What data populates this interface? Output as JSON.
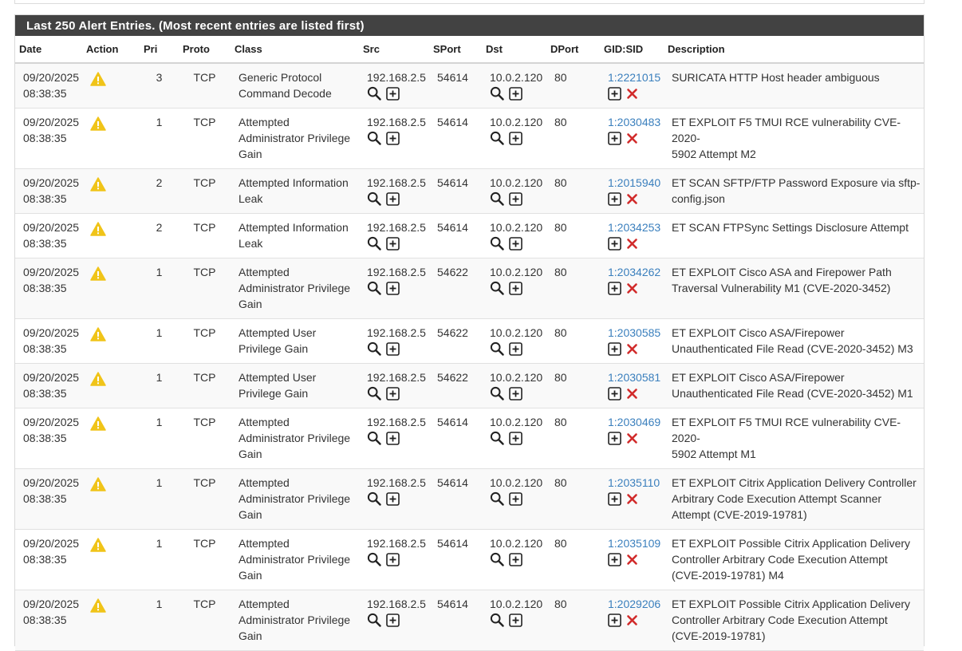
{
  "panel": {
    "title": "Last 250 Alert Entries. (Most recent entries are listed first)"
  },
  "columns": [
    "Date",
    "Action",
    "Pri",
    "Proto",
    "Class",
    "Src",
    "SPort",
    "Dst",
    "DPort",
    "GID:SID",
    "Description"
  ],
  "colors": {
    "heading_bg": "#424242",
    "link": "#3a7fbd",
    "warning": "#f0c419",
    "delete": "#d12b2b"
  },
  "rows": [
    {
      "date": "09/20/2025",
      "time": "08:38:35",
      "action_icon": "warning-icon",
      "pri": "3",
      "proto": "TCP",
      "class_l1": "Generic Protocol",
      "class_l2": "Command Decode",
      "class_l3": "",
      "src": "192.168.2.5",
      "sport": "54614",
      "dst": "10.0.2.120",
      "dport": "80",
      "sid": "1:2221015",
      "desc_l1": "SURICATA HTTP Host header ambiguous",
      "desc_l2": "",
      "desc_l3": "",
      "icons_row": 2
    },
    {
      "date": "09/20/2025",
      "time": "08:38:35",
      "action_icon": "warning-icon",
      "pri": "1",
      "proto": "TCP",
      "class_l1": "Attempted",
      "class_l2": "Administrator Privilege",
      "class_l3": "Gain",
      "src": "192.168.2.5",
      "sport": "54614",
      "dst": "10.0.2.120",
      "dport": "80",
      "sid": "1:2030483",
      "desc_l1": "ET EXPLOIT F5 TMUI RCE vulnerability CVE-2020-",
      "desc_l2": "5902 Attempt M2",
      "desc_l3": "",
      "icons_row": 2
    },
    {
      "date": "09/20/2025",
      "time": "08:38:35",
      "action_icon": "warning-icon",
      "pri": "2",
      "proto": "TCP",
      "class_l1": "Attempted Information",
      "class_l2": "Leak",
      "class_l3": "",
      "src": "192.168.2.5",
      "sport": "54614",
      "dst": "10.0.2.120",
      "dport": "80",
      "sid": "1:2015940",
      "desc_l1": "ET SCAN SFTP/FTP Password Exposure via sftp-",
      "desc_l2": "config.json",
      "desc_l3": "",
      "icons_row": 2
    },
    {
      "date": "09/20/2025",
      "time": "08:38:35",
      "action_icon": "warning-icon",
      "pri": "2",
      "proto": "TCP",
      "class_l1": "Attempted Information",
      "class_l2": "Leak",
      "class_l3": "",
      "src": "192.168.2.5",
      "sport": "54614",
      "dst": "10.0.2.120",
      "dport": "80",
      "sid": "1:2034253",
      "desc_l1": "ET SCAN FTPSync Settings Disclosure Attempt",
      "desc_l2": "",
      "desc_l3": "",
      "icons_row": 2
    },
    {
      "date": "09/20/2025",
      "time": "08:38:35",
      "action_icon": "warning-icon",
      "pri": "1",
      "proto": "TCP",
      "class_l1": "Attempted",
      "class_l2": "Administrator Privilege",
      "class_l3": "Gain",
      "src": "192.168.2.5",
      "sport": "54622",
      "dst": "10.0.2.120",
      "dport": "80",
      "sid": "1:2034262",
      "desc_l1": "ET EXPLOIT Cisco ASA and Firepower Path",
      "desc_l2": "Traversal Vulnerability M1 (CVE-2020-3452)",
      "desc_l3": "",
      "icons_row": 2
    },
    {
      "date": "09/20/2025",
      "time": "08:38:35",
      "action_icon": "warning-icon",
      "pri": "1",
      "proto": "TCP",
      "class_l1": "Attempted User",
      "class_l2": "Privilege Gain",
      "class_l3": "",
      "src": "192.168.2.5",
      "sport": "54622",
      "dst": "10.0.2.120",
      "dport": "80",
      "sid": "1:2030585",
      "desc_l1": "ET EXPLOIT Cisco ASA/Firepower",
      "desc_l2": "Unauthenticated File Read (CVE-2020-3452) M3",
      "desc_l3": "",
      "icons_row": 2
    },
    {
      "date": "09/20/2025",
      "time": "08:38:35",
      "action_icon": "warning-icon",
      "pri": "1",
      "proto": "TCP",
      "class_l1": "Attempted User",
      "class_l2": "Privilege Gain",
      "class_l3": "",
      "src": "192.168.2.5",
      "sport": "54622",
      "dst": "10.0.2.120",
      "dport": "80",
      "sid": "1:2030581",
      "desc_l1": "ET EXPLOIT Cisco ASA/Firepower",
      "desc_l2": "Unauthenticated File Read (CVE-2020-3452) M1",
      "desc_l3": "",
      "icons_row": 2
    },
    {
      "date": "09/20/2025",
      "time": "08:38:35",
      "action_icon": "warning-icon",
      "pri": "1",
      "proto": "TCP",
      "class_l1": "Attempted",
      "class_l2": "Administrator Privilege",
      "class_l3": "Gain",
      "src": "192.168.2.5",
      "sport": "54614",
      "dst": "10.0.2.120",
      "dport": "80",
      "sid": "1:2030469",
      "desc_l1": "ET EXPLOIT F5 TMUI RCE vulnerability CVE-2020-",
      "desc_l2": "5902 Attempt M1",
      "desc_l3": "",
      "icons_row": 2
    },
    {
      "date": "09/20/2025",
      "time": "08:38:35",
      "action_icon": "warning-icon",
      "pri": "1",
      "proto": "TCP",
      "class_l1": "Attempted",
      "class_l2": "Administrator Privilege",
      "class_l3": "Gain",
      "src": "192.168.2.5",
      "sport": "54614",
      "dst": "10.0.2.120",
      "dport": "80",
      "sid": "1:2035110",
      "desc_l1": "ET EXPLOIT Citrix Application Delivery Controller",
      "desc_l2": "Arbitrary Code Execution Attempt Scanner",
      "desc_l3": "Attempt (CVE-2019-19781)",
      "icons_row": 2
    },
    {
      "date": "09/20/2025",
      "time": "08:38:35",
      "action_icon": "warning-icon",
      "pri": "1",
      "proto": "TCP",
      "class_l1": "Attempted",
      "class_l2": "Administrator Privilege",
      "class_l3": "Gain",
      "src": "192.168.2.5",
      "sport": "54614",
      "dst": "10.0.2.120",
      "dport": "80",
      "sid": "1:2035109",
      "desc_l1": "ET EXPLOIT Possible Citrix Application Delivery",
      "desc_l2": "Controller Arbitrary Code Execution Attempt",
      "desc_l3": "(CVE-2019-19781) M4",
      "icons_row": 2
    },
    {
      "date": "09/20/2025",
      "time": "08:38:35",
      "action_icon": "warning-icon",
      "pri": "1",
      "proto": "TCP",
      "class_l1": "Attempted",
      "class_l2": "Administrator Privilege",
      "class_l3": "Gain",
      "src": "192.168.2.5",
      "sport": "54614",
      "dst": "10.0.2.120",
      "dport": "80",
      "sid": "1:2029206",
      "desc_l1": "ET EXPLOIT Possible Citrix Application Delivery",
      "desc_l2": "Controller Arbitrary Code Execution Attempt",
      "desc_l3": "(CVE-2019-19781)",
      "icons_row": 2
    }
  ]
}
